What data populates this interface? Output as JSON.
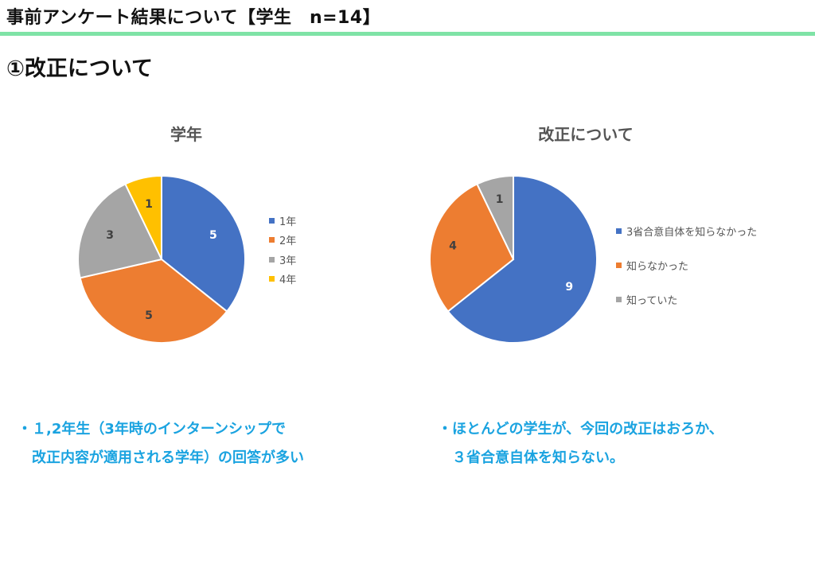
{
  "header": {
    "title": "事前アンケート結果について【学生　n=14】",
    "rule_color": "#7fe3a6"
  },
  "section_title": "①改正について",
  "chart_data": [
    {
      "type": "pie",
      "title": "学年",
      "categories": [
        "1年",
        "2年",
        "3年",
        "4年"
      ],
      "values": [
        5,
        5,
        3,
        1
      ],
      "data_labels": [
        "5",
        "5",
        "3",
        "1"
      ],
      "colors": [
        "#4472c4",
        "#ed7d31",
        "#a5a5a5",
        "#ffc000"
      ],
      "legend": "right"
    },
    {
      "type": "pie",
      "title": "改正について",
      "categories": [
        "3省合意自体を知らなかった",
        "知らなかった",
        "知っていた"
      ],
      "values": [
        9,
        4,
        1
      ],
      "data_labels": [
        "9",
        "4",
        "1"
      ],
      "colors": [
        "#4472c4",
        "#ed7d31",
        "#a5a5a5"
      ],
      "legend": "right"
    }
  ],
  "notes": {
    "left": [
      "・１,2年生（3年時のインターンシップで",
      "　改正内容が適用される学年）の回答が多い"
    ],
    "right": [
      "・ほとんどの学生が、今回の改正はおろか、",
      "　３省合意自体を知らない。"
    ],
    "color": "#1aa3e0"
  }
}
